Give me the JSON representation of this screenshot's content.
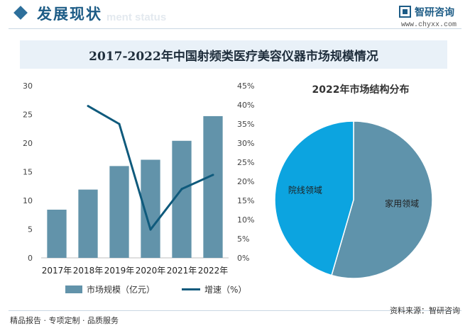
{
  "header": {
    "title": "发展现状",
    "subtitle": "ment status",
    "logo_name": "智研咨询",
    "logo_url": "www.chyxx.com"
  },
  "main_title": "2017-2022年中国射频类医疗美容仪器市场规模情况",
  "chart_data": [
    {
      "type": "bar",
      "categories": [
        "2017年",
        "2018年",
        "2019年",
        "2020年",
        "2021年",
        "2022年"
      ],
      "series": [
        {
          "name": "市场规模（亿元）",
          "type": "bar",
          "axis": "left",
          "values": [
            8.4,
            11.9,
            16.0,
            17.1,
            20.4,
            24.7
          ]
        },
        {
          "name": "增速（%）",
          "type": "line",
          "axis": "right",
          "values": [
            null,
            39.7,
            35.0,
            7.4,
            18.0,
            21.7
          ]
        }
      ],
      "y_left": {
        "min": 0,
        "max": 30,
        "ticks": [
          "0",
          "5",
          "10",
          "15",
          "20",
          "25",
          "30"
        ]
      },
      "y_right": {
        "min": 0,
        "max": 45,
        "ticks": [
          "0%",
          "5%",
          "10%",
          "15%",
          "20%",
          "25%",
          "30%",
          "35%",
          "40%",
          "45%"
        ]
      },
      "grid": false,
      "legend": "bottom",
      "colors": {
        "bar": "#6293aa",
        "line": "#0f5a7c"
      }
    },
    {
      "type": "pie",
      "title": "2022年市场结构分布",
      "labels": [
        "家用领域",
        "院线领域"
      ],
      "values": [
        54.5,
        45.5
      ],
      "colors": [
        "#5f93ab",
        "#0ca4e0"
      ]
    }
  ],
  "footer": {
    "left": "精品报告 · 专项定制 · 品质服务",
    "right": "资料来源：智研咨询"
  }
}
